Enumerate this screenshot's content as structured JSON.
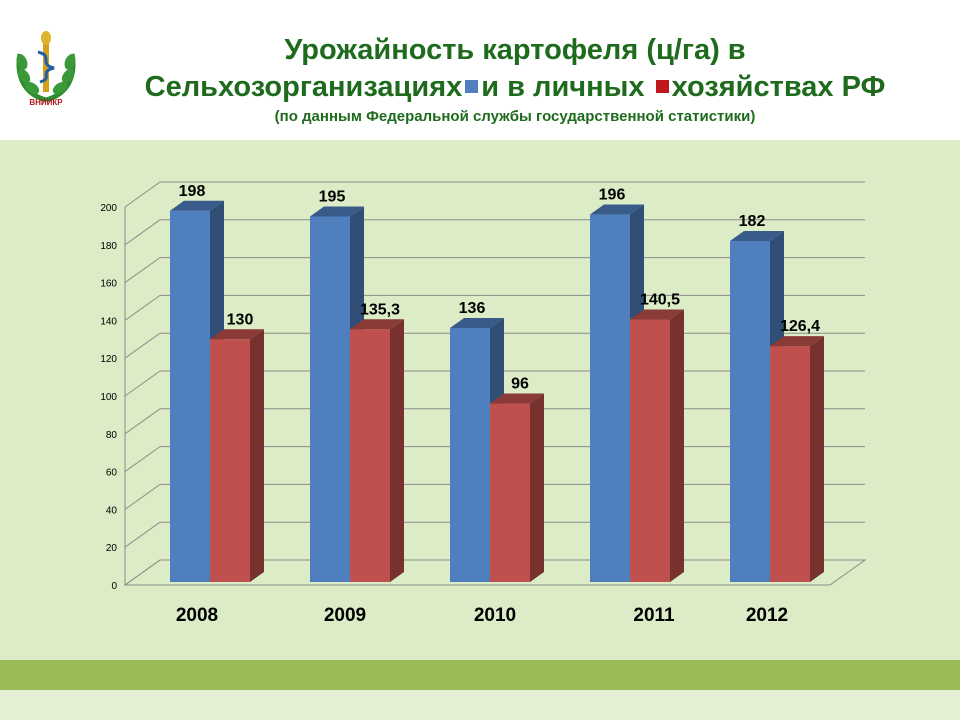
{
  "header": {
    "logo_text": "ВНИИКР",
    "title_line1": "Урожайность картофеля (ц/га) в",
    "title_line2a": "Сельхозорганизациях",
    "title_line2b": "и в личных",
    "title_line2c": "хозяйствах РФ",
    "subtitle": "(по данным Федеральной службы государственной статистики)"
  },
  "colors": {
    "series1": "#4f7fbf",
    "series2": "#c0504d",
    "legend_marker2": "#c0171c",
    "title": "#1e6b1e",
    "panel": "#dbecc6",
    "stripe": "#9bbb59"
  },
  "chart_data": {
    "type": "bar",
    "style": "3d-clustered-column",
    "categories": [
      "2008",
      "2009",
      "2010",
      "2011",
      "2012"
    ],
    "series": [
      {
        "values": [
          198,
          195,
          136,
          196,
          182
        ],
        "labels": [
          "198",
          "195",
          "136",
          "196",
          "182"
        ]
      },
      {
        "values": [
          130,
          135.3,
          96,
          140.5,
          126.4
        ],
        "labels": [
          "130",
          "135,3",
          "96",
          "140,5",
          "126,4"
        ]
      }
    ],
    "ylim": [
      0,
      200
    ],
    "yticks": [
      "0",
      "20",
      "40",
      "60",
      "80",
      "100",
      "120",
      "140",
      "160",
      "180",
      "200"
    ],
    "grid": true,
    "legend": "none"
  }
}
